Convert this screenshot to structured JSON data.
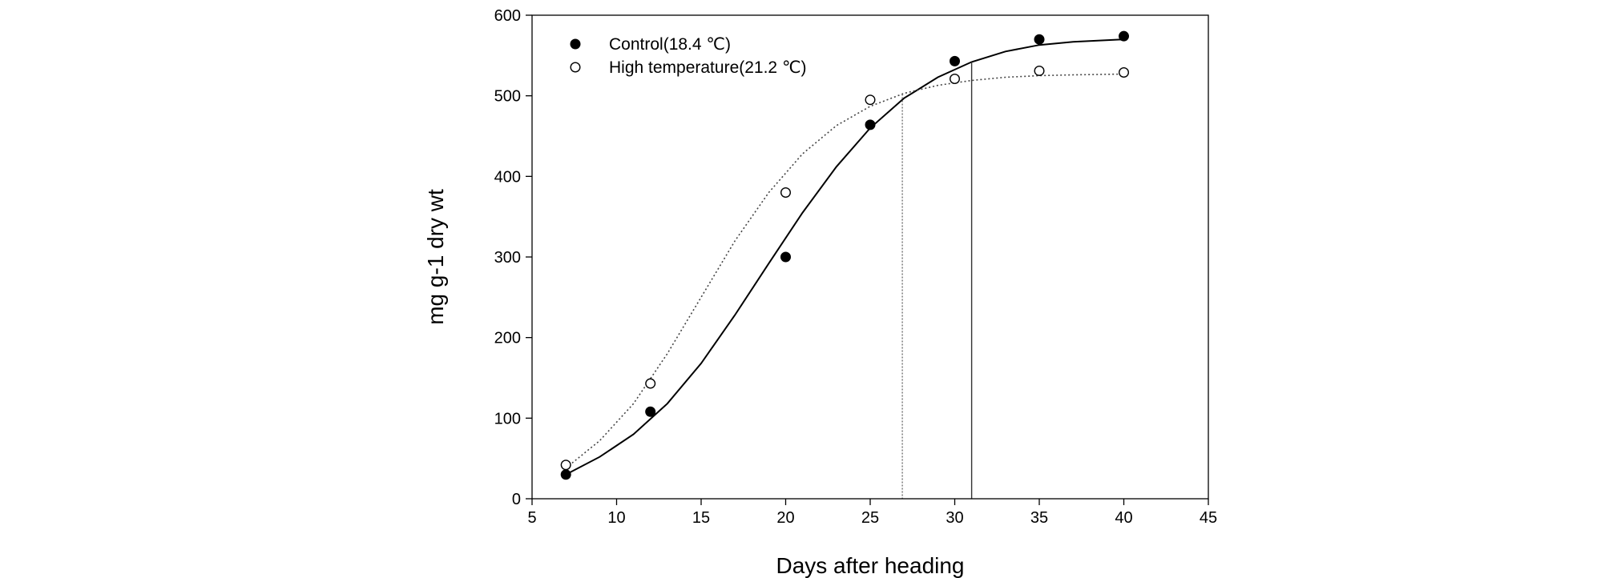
{
  "chart_data": {
    "type": "scatter",
    "title": "",
    "xlabel": "Days after heading",
    "ylabel": "mg g-1 dry wt",
    "xlim": [
      5,
      45
    ],
    "ylim": [
      0,
      600
    ],
    "x_ticks": [
      5,
      10,
      15,
      20,
      25,
      30,
      35,
      40,
      45
    ],
    "y_ticks": [
      0,
      100,
      200,
      300,
      400,
      500,
      600
    ],
    "x_tick_labels": [
      "5",
      "10",
      "15",
      "20",
      "25",
      "30",
      "35",
      "40",
      "45"
    ],
    "y_tick_labels": [
      "0",
      "100",
      "200",
      "300",
      "400",
      "500",
      "600"
    ],
    "grid": false,
    "legend_position": "top-left",
    "series": [
      {
        "name": "Control(18.4 ℃)",
        "marker": "filled-circle",
        "line_style": "solid",
        "color": "#000000",
        "x": [
          7,
          12,
          20,
          25,
          30,
          35,
          40
        ],
        "y": [
          30,
          108,
          300,
          464,
          543,
          570,
          574
        ],
        "fit_x": [
          7,
          9,
          11,
          13,
          15,
          17,
          19,
          21,
          23,
          25,
          27,
          29,
          31,
          33,
          35,
          37,
          40
        ],
        "fit_y": [
          30,
          52,
          80,
          118,
          168,
          228,
          292,
          355,
          412,
          460,
          497,
          523,
          542,
          555,
          563,
          567,
          570
        ],
        "marker_line_x": 31
      },
      {
        "name": "High temperature(21.2 ℃)",
        "marker": "open-circle",
        "line_style": "dotted",
        "color": "#000000",
        "x": [
          7,
          12,
          20,
          25,
          30,
          35,
          40
        ],
        "y": [
          42,
          143,
          380,
          495,
          521,
          531,
          529
        ],
        "fit_x": [
          7,
          9,
          11,
          13,
          15,
          17,
          19,
          21,
          23,
          25,
          27,
          29,
          31,
          33,
          35,
          37,
          40
        ],
        "fit_y": [
          38,
          72,
          118,
          180,
          250,
          320,
          380,
          428,
          463,
          487,
          503,
          513,
          519,
          523,
          525,
          526,
          527
        ],
        "marker_line_x": 26.9
      }
    ]
  }
}
